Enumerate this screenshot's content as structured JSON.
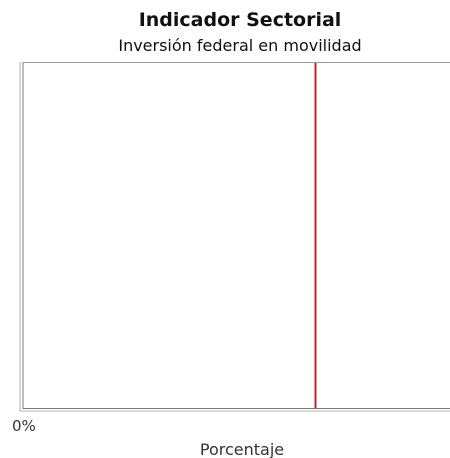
{
  "chart_data": {
    "type": "bar",
    "title": "Indicador Sectorial",
    "subtitle": "Inversión federal en movilidad",
    "xlabel": "Porcentaje",
    "ylabel": "",
    "x_tick_labels": [
      "0%"
    ],
    "reference_line": {
      "value": 68.5,
      "unit": "percent",
      "color": "#c81e1e"
    },
    "xlim": [
      0,
      100
    ],
    "grid": false,
    "legend": "none",
    "categories": [],
    "values": []
  }
}
